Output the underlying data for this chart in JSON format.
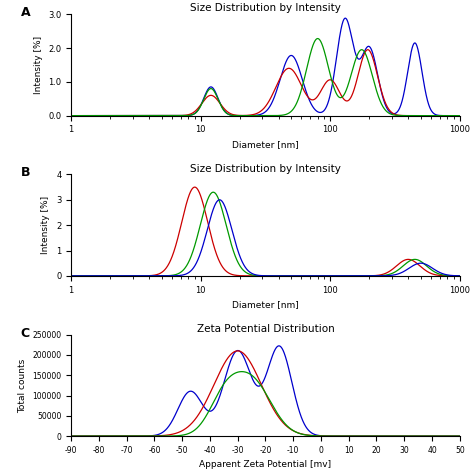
{
  "panel_A_title": "Size Distribution by Intensity",
  "panel_B_title": "Size Distribution by Intensity",
  "panel_C_title": "Zeta Potential Distribution",
  "panel_A_xlabel": "Diameter [nm]",
  "panel_A_ylabel": "Intensity [%]",
  "panel_B_xlabel": "Diameter [nm]",
  "panel_B_ylabel": "Intensity [%]",
  "panel_C_xlabel": "Apparent Zeta Potential [mv]",
  "panel_C_ylabel": "Total counts",
  "colors": {
    "blue": "#0000cc",
    "red": "#cc0000",
    "green": "#009900"
  },
  "panel_A_ylim": [
    0,
    3.0
  ],
  "panel_B_ylim": [
    0,
    4.0
  ],
  "panel_C_ylim": [
    0,
    250000
  ],
  "panel_C_xlim": [
    -90,
    50
  ],
  "panel_C_xticks": [
    -90,
    -80,
    -70,
    -60,
    -50,
    -40,
    -30,
    -20,
    -10,
    0,
    10,
    20,
    30,
    40,
    50
  ]
}
